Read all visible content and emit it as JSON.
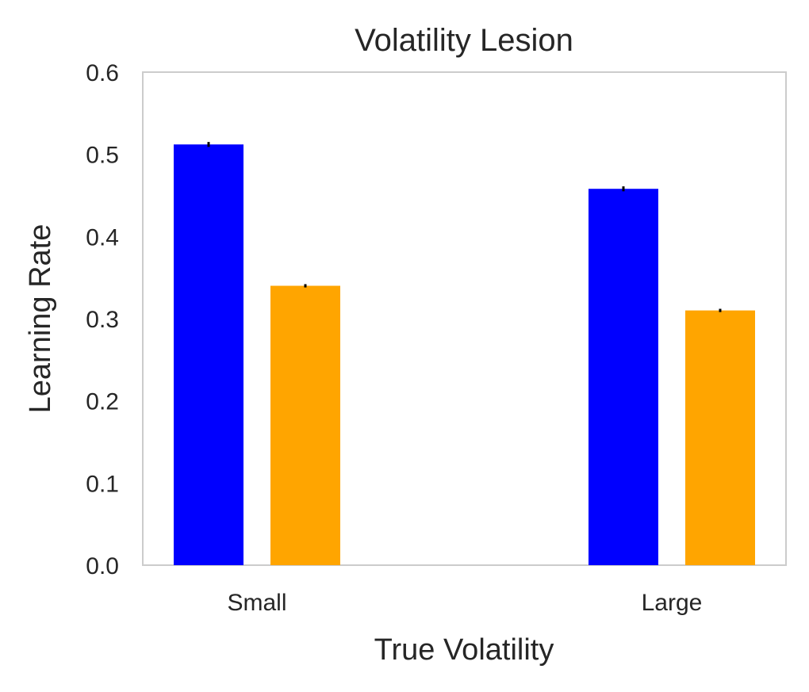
{
  "chart_data": {
    "type": "bar",
    "title": "Volatility Lesion",
    "xlabel": "True Volatility",
    "ylabel": "Learning Rate",
    "categories": [
      "Small",
      "Large"
    ],
    "series": [
      {
        "values": [
          0.512,
          0.458
        ],
        "errors": [
          0.003,
          0.003
        ],
        "color": "#0000ff"
      },
      {
        "values": [
          0.34,
          0.31
        ],
        "errors": [
          0.002,
          0.002
        ],
        "color": "#ffa500"
      }
    ],
    "ylim": [
      0,
      0.6
    ],
    "yticks": [
      "0.0",
      "0.1",
      "0.2",
      "0.3",
      "0.4",
      "0.5",
      "0.6"
    ],
    "grid": false,
    "legend": "none"
  }
}
